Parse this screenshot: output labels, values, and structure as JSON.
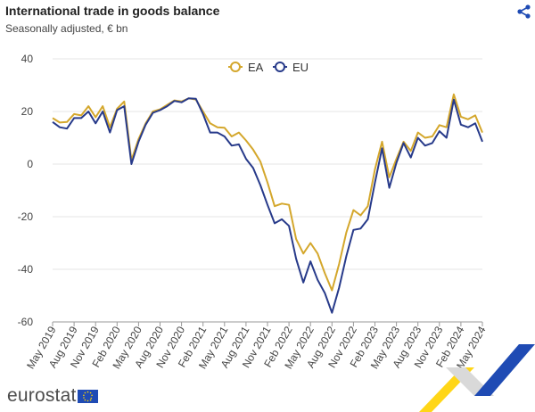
{
  "header": {
    "title": "International trade in goods balance",
    "subtitle": "Seasonally adjusted, € bn"
  },
  "branding": {
    "logo_text": "eurostat"
  },
  "colors": {
    "ea": "#D4A72C",
    "eu": "#273A8A",
    "grid": "#e6e6e6",
    "axis": "#999999"
  },
  "chart_data": {
    "type": "line",
    "title": "International trade in goods balance",
    "subtitle": "Seasonally adjusted, € bn",
    "ylim": [
      -60,
      40
    ],
    "yticks": [
      -60,
      -40,
      -20,
      0,
      20,
      40
    ],
    "xtick_labels": [
      "May 2019",
      "Aug 2019",
      "Nov 2019",
      "Feb 2020",
      "May 2020",
      "Aug 2020",
      "Nov 2020",
      "Feb 2021",
      "May 2021",
      "Aug 2021",
      "Nov 2021",
      "Feb 2022",
      "May 2022",
      "Aug 2022",
      "Nov 2022",
      "Feb 2023",
      "May 2023",
      "Aug 2023",
      "Nov 2023",
      "Feb 2024",
      "May 2024"
    ],
    "legend_position": "top-center",
    "series": [
      {
        "name": "EA",
        "color": "#D4A72C",
        "values": [
          17.5,
          15.8,
          16.0,
          19.0,
          18.5,
          22.0,
          17.8,
          22.0,
          14.0,
          21.0,
          23.8,
          1.5,
          9.5,
          15.5,
          20.0,
          20.8,
          22.5,
          24.2,
          23.8,
          25.0,
          24.5,
          20.0,
          15.5,
          14.0,
          13.8,
          10.5,
          12.0,
          9.0,
          5.5,
          1.0,
          -7.0,
          -16.0,
          -15.0,
          -15.5,
          -28.5,
          -34.0,
          -30.0,
          -34.0,
          -41.5,
          -48.0,
          -38.0,
          -26.0,
          -17.5,
          -19.5,
          -16.0,
          -2.0,
          8.5,
          -5.0,
          2.0,
          8.5,
          5.0,
          12.0,
          10.0,
          10.5,
          14.8,
          14.0,
          26.5,
          18.0,
          17.0,
          18.5,
          12.0
        ]
      },
      {
        "name": "EU",
        "color": "#273A8A",
        "values": [
          16.0,
          14.0,
          13.5,
          17.5,
          17.5,
          20.0,
          15.5,
          20.0,
          12.0,
          20.5,
          22.0,
          0.0,
          8.5,
          15.0,
          19.5,
          20.5,
          22.0,
          24.0,
          23.5,
          25.0,
          24.8,
          19.0,
          12.0,
          12.0,
          10.5,
          7.0,
          7.5,
          2.0,
          -1.5,
          -8.0,
          -15.5,
          -22.5,
          -21.0,
          -23.5,
          -36.0,
          -45.0,
          -37.0,
          -44.0,
          -49.0,
          -56.5,
          -47.0,
          -35.0,
          -25.0,
          -24.5,
          -21.0,
          -7.0,
          6.0,
          -9.0,
          0.5,
          8.0,
          2.5,
          10.0,
          7.0,
          8.0,
          12.5,
          10.0,
          24.5,
          15.0,
          14.0,
          15.5,
          8.5
        ]
      }
    ]
  }
}
